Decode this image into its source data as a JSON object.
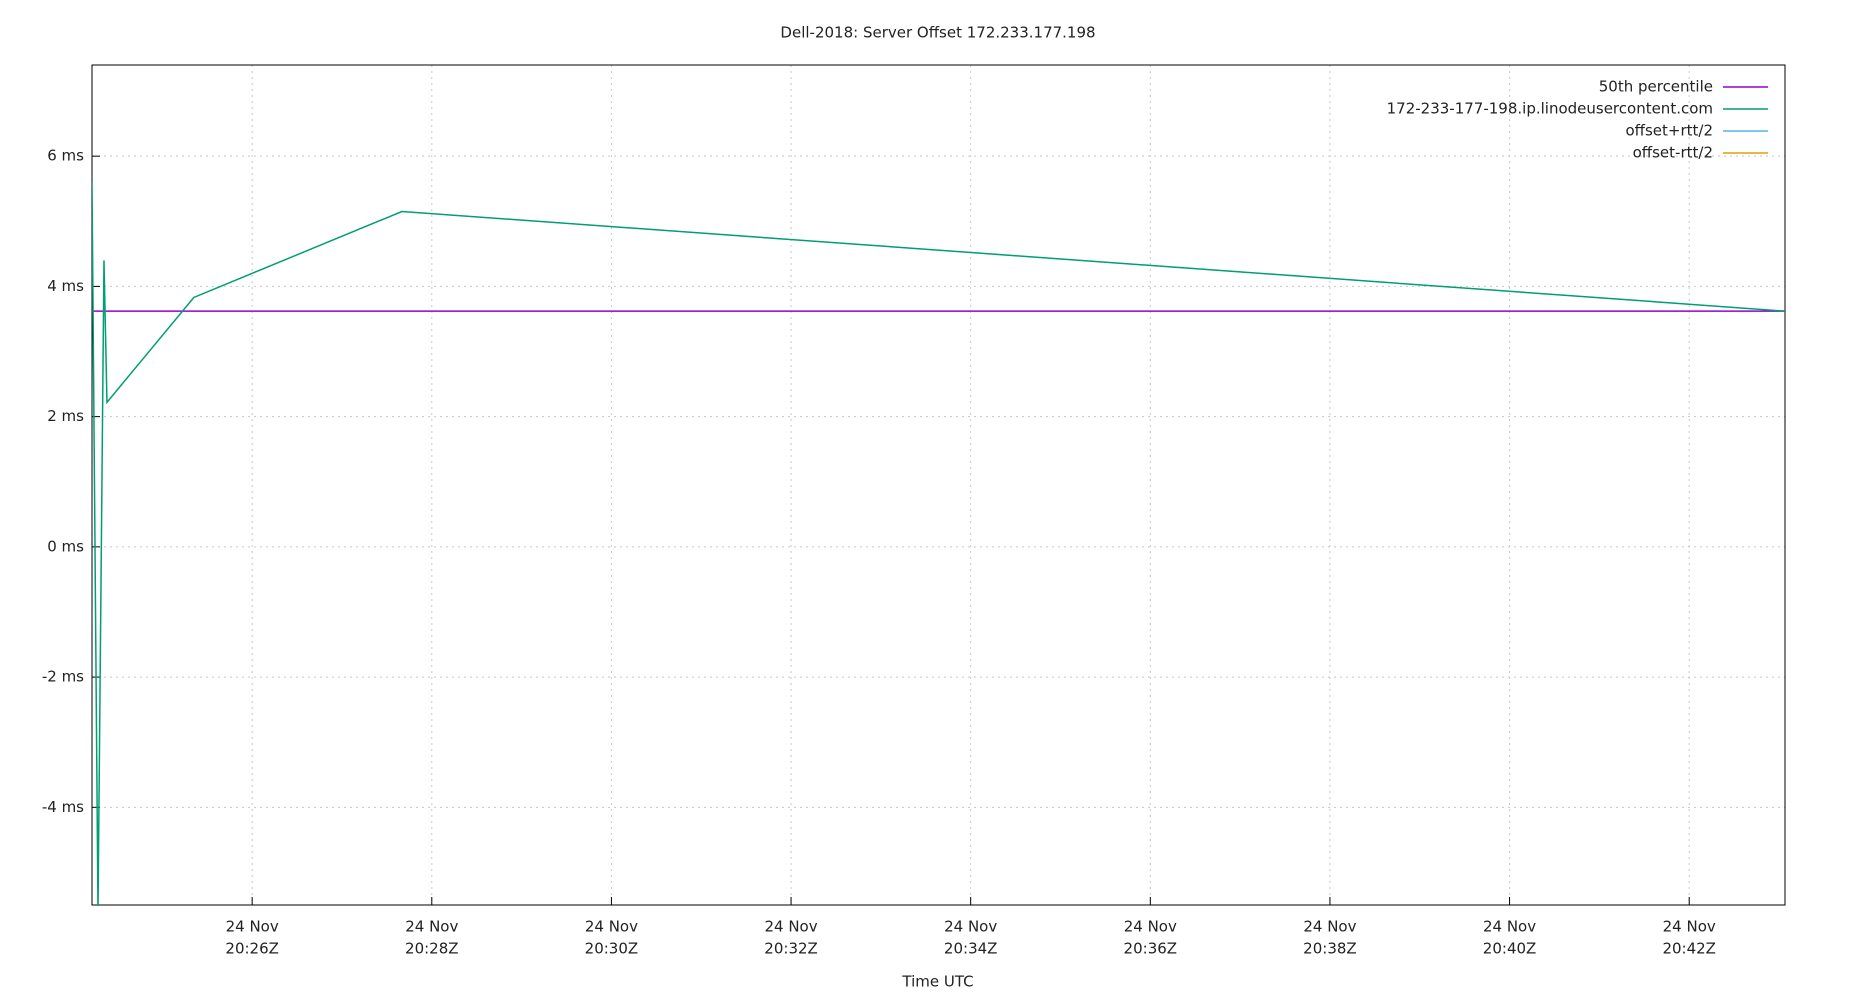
{
  "chart_data": {
    "type": "line",
    "title": "Dell-2018: Server Offset 172.233.177.198",
    "xlabel": "Time UTC",
    "x": [
      "20:24:13",
      "20:24:17",
      "20:24:21",
      "20:24:23",
      "20:25:21",
      "20:27:40",
      "20:43:04"
    ],
    "series": [
      {
        "name": "50th percentile",
        "color": "#9400d3",
        "values": [
          3.62,
          3.62,
          3.62,
          3.62,
          3.62,
          3.62,
          3.62
        ]
      },
      {
        "name": "172-233-177-198.ip.linodeusercontent.com",
        "color": "#009e73",
        "values": [
          5.6,
          -5.6,
          4.4,
          2.22,
          3.83,
          5.15,
          3.62
        ]
      },
      {
        "name": "offset+rtt/2",
        "color": "#56b4e9",
        "values": [
          null,
          null,
          null,
          null,
          null,
          null,
          null
        ]
      },
      {
        "name": "offset-rtt/2",
        "color": "#e69f00",
        "values": [
          null,
          null,
          null,
          null,
          null,
          null,
          null
        ]
      }
    ],
    "xlim": [
      "20:24:13",
      "20:43:04"
    ],
    "xticks": [
      {
        "value": "20:26:00",
        "label": [
          "24 Nov",
          "20:26Z"
        ]
      },
      {
        "value": "20:28:00",
        "label": [
          "24 Nov",
          "20:28Z"
        ]
      },
      {
        "value": "20:30:00",
        "label": [
          "24 Nov",
          "20:30Z"
        ]
      },
      {
        "value": "20:32:00",
        "label": [
          "24 Nov",
          "20:32Z"
        ]
      },
      {
        "value": "20:34:00",
        "label": [
          "24 Nov",
          "20:34Z"
        ]
      },
      {
        "value": "20:36:00",
        "label": [
          "24 Nov",
          "20:36Z"
        ]
      },
      {
        "value": "20:38:00",
        "label": [
          "24 Nov",
          "20:38Z"
        ]
      },
      {
        "value": "20:40:00",
        "label": [
          "24 Nov",
          "20:40Z"
        ]
      },
      {
        "value": "20:42:00",
        "label": [
          "24 Nov",
          "20:42Z"
        ]
      }
    ],
    "ylim": [
      -5.5,
      7.4
    ],
    "yticks": [
      {
        "value": -4,
        "label": "-4 ms"
      },
      {
        "value": -2,
        "label": "-2 ms"
      },
      {
        "value": 0,
        "label": "0 ms"
      },
      {
        "value": 2,
        "label": "2 ms"
      },
      {
        "value": 4,
        "label": "4 ms"
      },
      {
        "value": 6,
        "label": "6 ms"
      }
    ],
    "grid": true,
    "legend": "upper-right"
  }
}
